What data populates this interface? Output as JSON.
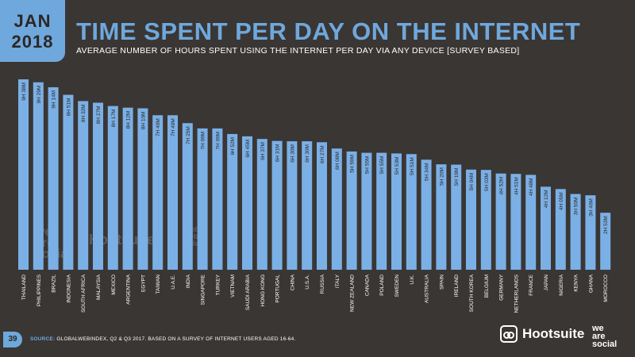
{
  "header": {
    "month": "JAN",
    "year": "2018",
    "title": "TIME SPENT PER DAY ON THE INTERNET",
    "subtitle": "AVERAGE NUMBER OF HOURS SPENT USING THE INTERNET PER DAY VIA ANY DEVICE [SURVEY BASED]"
  },
  "footer": {
    "page_number": "39",
    "source_label": "SOURCE:",
    "source_text": "GLOBALWEBINDEX, Q2 & Q3 2017. BASED ON A SURVEY OF INTERNET USERS AGED 16-64.",
    "brand_hootsuite": "Hootsuite",
    "brand_was_1": "we",
    "brand_was_2": "are",
    "brand_was_3": "social"
  },
  "watermarks": {
    "was": "we are social",
    "hootsuite": "Hootsuite",
    "gwi": "global web index"
  },
  "colors": {
    "bar": "#7bb0e6",
    "background": "#3a3634",
    "accent": "#6fa8dc"
  },
  "chart_data": {
    "type": "bar",
    "unit": "hours per day",
    "categories": [
      "THAILAND",
      "PHILIPPINES",
      "BRAZIL",
      "INDONESIA",
      "SOUTH AFRICA",
      "MALAYSIA",
      "MEXICO",
      "ARGENTINA",
      "EGYPT",
      "TAIWAN",
      "U.A.E.",
      "INDIA",
      "SINGAPORE",
      "TURKEY",
      "VIETNAM",
      "SAUDI ARABIA",
      "HONG KONG",
      "PORTUGAL",
      "CHINA",
      "U.S.A.",
      "RUSSIA",
      "ITALY",
      "NEW ZEALAND",
      "CANADA",
      "POLAND",
      "SWEDEN",
      "U.K.",
      "AUSTRALIA",
      "SPAIN",
      "IRELAND",
      "SOUTH KOREA",
      "BELGIUM",
      "GERMANY",
      "NETHERLANDS",
      "FRANCE",
      "JAPAN",
      "NIGERIA",
      "KENYA",
      "GHANA",
      "MOROCCO"
    ],
    "labels": [
      "9H 38M",
      "9H 29M",
      "9H 14M",
      "8H 51M",
      "8H 32M",
      "8H 27M",
      "8H 17M",
      "8H 12M",
      "8H 10M",
      "7H 49M",
      "7H 49M",
      "7H 25M",
      "7H 09M",
      "7H 09M",
      "6H 52M",
      "6H 45M",
      "6H 37M",
      "6H 31M",
      "6H 30M",
      "6H 30M",
      "6H 27M",
      "6H 08M",
      "5H 59M",
      "5H 55M",
      "5H 55M",
      "5H 53M",
      "5H 51M",
      "5H 34M",
      "5H 20M",
      "5H 19M",
      "5H 04M",
      "5H 03M",
      "4H 52M",
      "4H 51M",
      "4H 48M",
      "4H 12M",
      "4H 05M",
      "3H 50M",
      "3H 46M",
      "2H 53M"
    ],
    "values": [
      9.633,
      9.483,
      9.233,
      8.85,
      8.533,
      8.45,
      8.283,
      8.2,
      8.167,
      7.817,
      7.817,
      7.417,
      7.15,
      7.15,
      6.867,
      6.75,
      6.617,
      6.517,
      6.5,
      6.5,
      6.45,
      6.133,
      5.983,
      5.917,
      5.917,
      5.883,
      5.85,
      5.567,
      5.333,
      5.317,
      5.067,
      5.05,
      4.867,
      4.85,
      4.8,
      4.2,
      4.083,
      3.833,
      3.767,
      2.883
    ]
  }
}
